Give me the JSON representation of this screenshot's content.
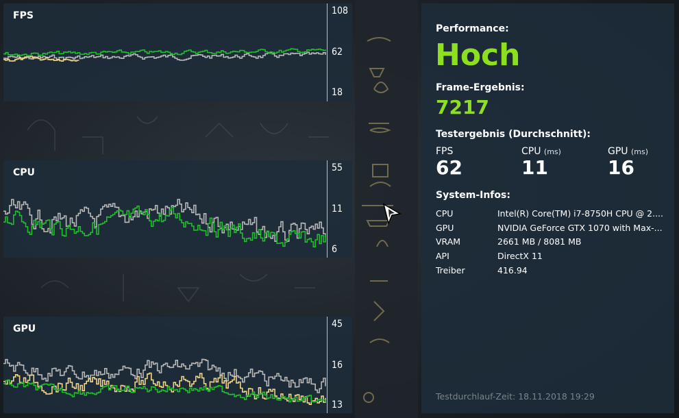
{
  "graphs": [
    {
      "id": "fps",
      "title": "FPS",
      "ticks": [
        "108",
        "62",
        "18"
      ],
      "colors": {
        "primary": "#1fbe2b",
        "secondary": "#b8b8b8",
        "tertiary": "#f0d58a"
      }
    },
    {
      "id": "cpu",
      "title": "CPU",
      "ticks": [
        "55",
        "11",
        "6"
      ],
      "colors": {
        "primary": "#1fbe2b",
        "secondary": "#b8b8b8"
      }
    },
    {
      "id": "gpu",
      "title": "GPU",
      "ticks": [
        "45",
        "16",
        "13"
      ],
      "colors": {
        "primary": "#1fbe2b",
        "secondary": "#b8b8b8",
        "tertiary": "#f0d58a"
      }
    }
  ],
  "info": {
    "performance_label": "Performance:",
    "performance_value": "Hoch",
    "frame_label": "Frame-Ergebnis:",
    "frame_value": "7217",
    "test_label": "Testergebnis (Durchschnitt):",
    "stats": [
      {
        "label": "FPS",
        "unit": "",
        "value": "62"
      },
      {
        "label": "CPU",
        "unit": "(ms)",
        "value": "11"
      },
      {
        "label": "GPU",
        "unit": "(ms)",
        "value": "16"
      }
    ],
    "system_label": "System-Infos:",
    "system": [
      {
        "key": "CPU",
        "value": "Intel(R) Core(TM) i7-8750H CPU @ 2...."
      },
      {
        "key": "GPU",
        "value": "NVIDIA GeForce GTX 1070 with Max-..."
      },
      {
        "key": "VRAM",
        "value": "2661 MB / 8081 MB"
      },
      {
        "key": "API",
        "value": "DirectX 11"
      },
      {
        "key": "Treiber",
        "value": "416.94"
      }
    ],
    "footer": "Testdurchlauf-Zeit: 18.11.2018 19:29",
    "accent_color": "#8de01f"
  }
}
